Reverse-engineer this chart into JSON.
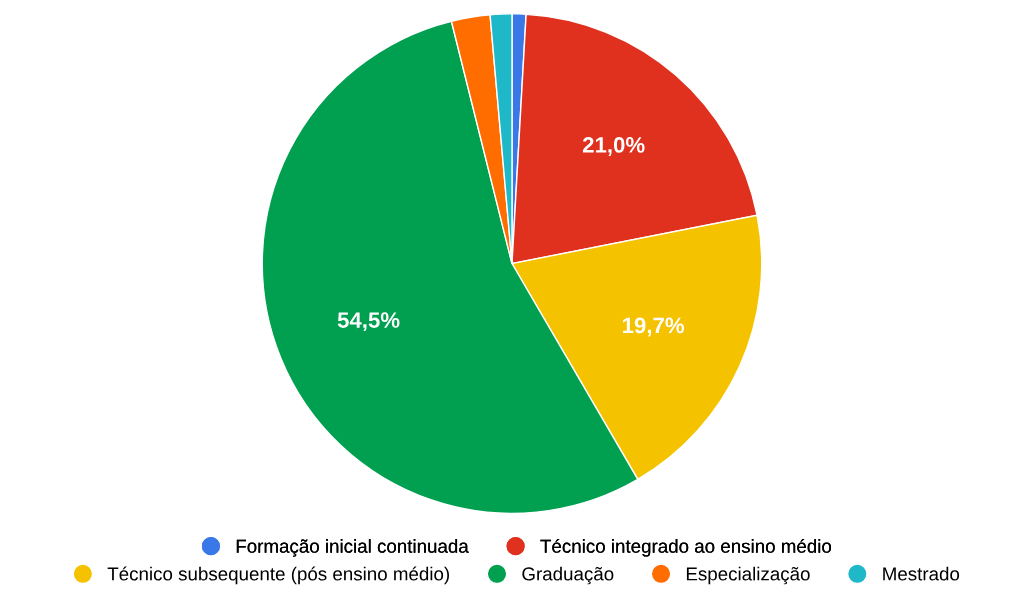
{
  "chart_data": {
    "type": "pie",
    "categories": [
      "Formação inicial continuada",
      "Técnico integrado ao ensino médio",
      "Técnico subsequente (pós ensino médio)",
      "Graduação",
      "Especialização",
      "Mestrado"
    ],
    "values": [
      0.9,
      21.0,
      19.7,
      54.5,
      2.5,
      1.4
    ],
    "colors": [
      "#3b78e7",
      "#e0301e",
      "#f5c200",
      "#00a050",
      "#ff6d00",
      "#1fb8c9"
    ],
    "value_labels": [
      null,
      "21,0%",
      "19,7%",
      "54,5%",
      null,
      null
    ],
    "legend": "bottom"
  }
}
